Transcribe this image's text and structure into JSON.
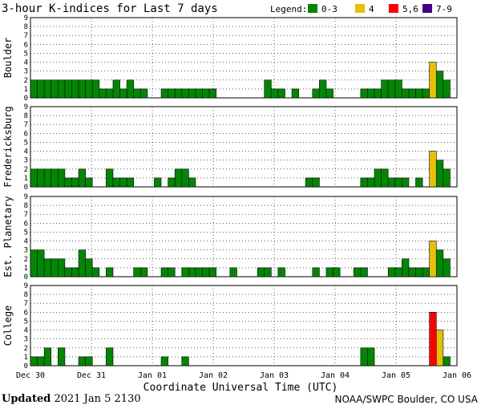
{
  "chart_data": {
    "type": "bar",
    "title": "3-hour K-indices for Last 7 days",
    "xlabel": "Coordinate Universal Time (UTC)",
    "x_tick_labels": [
      "Dec 30",
      "Dec 31",
      "Jan 01",
      "Jan 02",
      "Jan 03",
      "Jan 04",
      "Jan 05",
      "Jan 06"
    ],
    "ylim": [
      0,
      9
    ],
    "y_ticks": [
      "0",
      "1",
      "2",
      "3",
      "4",
      "5",
      "6",
      "7",
      "8",
      "9"
    ],
    "grid": true,
    "legend": {
      "title": "Legend:",
      "placement": "top-right",
      "entries": [
        {
          "label": "0-3",
          "color": "#008800"
        },
        {
          "label": "4",
          "color": "#e8c000"
        },
        {
          "label": "5,6",
          "color": "#ff0000"
        },
        {
          "label": "7-9",
          "color": "#440088"
        }
      ]
    },
    "series": [
      {
        "name": "Boulder",
        "values": [
          2,
          2,
          2,
          2,
          2,
          2,
          2,
          2,
          2,
          2,
          1,
          1,
          2,
          1,
          2,
          1,
          1,
          0,
          0,
          1,
          1,
          1,
          1,
          1,
          1,
          1,
          1,
          0,
          0,
          0,
          0,
          0,
          0,
          0,
          2,
          1,
          1,
          0,
          1,
          0,
          0,
          1,
          2,
          1,
          0,
          0,
          0,
          0,
          1,
          1,
          1,
          2,
          2,
          2,
          1,
          1,
          1,
          1,
          4,
          3,
          2,
          0
        ]
      },
      {
        "name": "Fredericksburg",
        "values": [
          2,
          2,
          2,
          2,
          2,
          1,
          1,
          2,
          1,
          0,
          0,
          2,
          1,
          1,
          1,
          0,
          0,
          0,
          1,
          0,
          1,
          2,
          2,
          1,
          0,
          0,
          0,
          0,
          0,
          0,
          0,
          0,
          0,
          0,
          0,
          0,
          0,
          0,
          0,
          0,
          1,
          1,
          0,
          0,
          0,
          0,
          0,
          0,
          1,
          1,
          2,
          2,
          1,
          1,
          1,
          0,
          1,
          0,
          4,
          3,
          2,
          0
        ]
      },
      {
        "name": "Est. Planetary",
        "values": [
          3,
          3,
          2,
          2,
          2,
          1,
          1,
          3,
          2,
          1,
          0,
          1,
          0,
          0,
          0,
          1,
          1,
          0,
          0,
          1,
          1,
          0,
          1,
          1,
          1,
          1,
          1,
          0,
          0,
          1,
          0,
          0,
          0,
          1,
          1,
          0,
          1,
          0,
          0,
          0,
          0,
          1,
          0,
          1,
          1,
          0,
          0,
          1,
          1,
          0,
          0,
          0,
          1,
          1,
          2,
          1,
          1,
          1,
          4,
          3,
          2,
          0
        ]
      },
      {
        "name": "College",
        "values": [
          1,
          1,
          2,
          0,
          2,
          0,
          0,
          1,
          1,
          0,
          0,
          2,
          0,
          0,
          0,
          0,
          0,
          0,
          0,
          1,
          0,
          0,
          1,
          0,
          0,
          0,
          0,
          0,
          0,
          0,
          0,
          0,
          0,
          0,
          0,
          0,
          0,
          0,
          0,
          0,
          0,
          0,
          0,
          0,
          0,
          0,
          0,
          0,
          2,
          2,
          0,
          0,
          0,
          0,
          0,
          0,
          0,
          0,
          6,
          4,
          1,
          0
        ]
      }
    ]
  },
  "footer": {
    "updated_label": "Updated",
    "updated_value": "2021 Jan  5 2130",
    "source": "NOAA/SWPC Boulder, CO USA"
  }
}
